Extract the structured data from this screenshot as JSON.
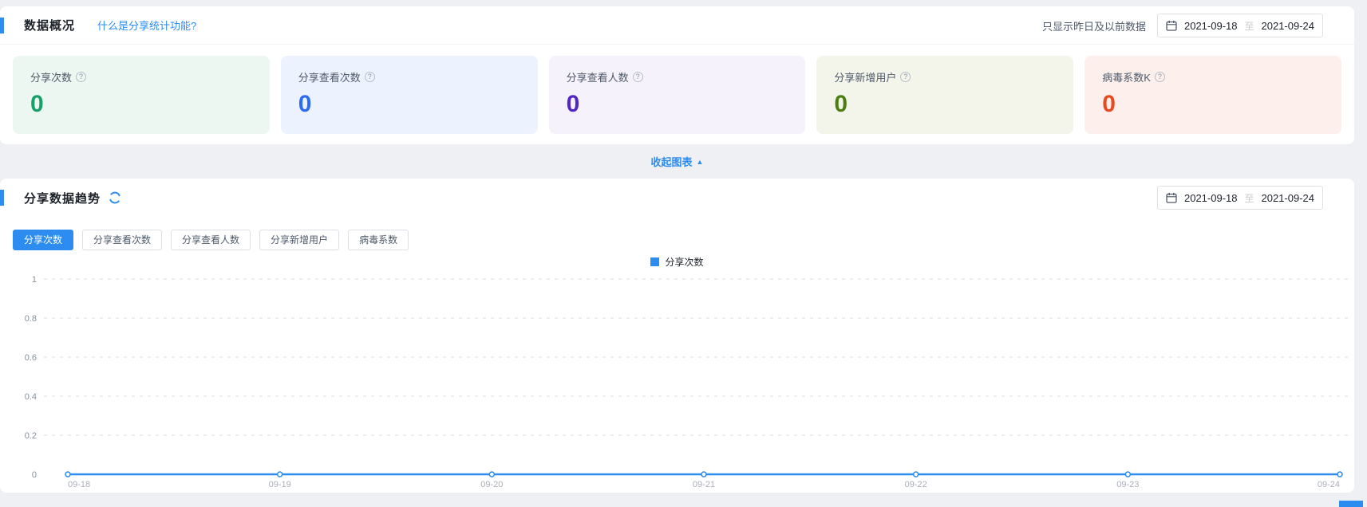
{
  "colors": {
    "accent": "#2D8CF0",
    "page_background": "#EEF0F4",
    "panel_background": "#FFFFFF",
    "border": "#DCDFE6",
    "grid_line": "#D8DCE5",
    "text_primary": "#1D2129",
    "text_secondary": "#4E5969",
    "axis_label": "#A9AEB8"
  },
  "icons": {
    "help_glyph": "?",
    "collapse_arrow": "▲"
  },
  "overview": {
    "title": "数据概况",
    "help_link": "什么是分享统计功能?",
    "date_note": "只显示昨日及以前数据",
    "date_range": {
      "start": "2021-09-18",
      "separator": "至",
      "end": "2021-09-24"
    },
    "cards": [
      {
        "label": "分享次数",
        "value": "0",
        "value_color": "#18A06B",
        "bg": "#ECF7F2"
      },
      {
        "label": "分享查看次数",
        "value": "0",
        "value_color": "#2D6BF2",
        "bg": "#EDF3FE"
      },
      {
        "label": "分享查看人数",
        "value": "0",
        "value_color": "#5226C4",
        "bg": "#F5F2FB"
      },
      {
        "label": "分享新增用户",
        "value": "0",
        "value_color": "#4A8010",
        "bg": "#F3F5EB"
      },
      {
        "label": "病毒系数K",
        "value": "0",
        "value_color": "#E8491F",
        "bg": "#FDEFEC"
      }
    ],
    "collapse_label": "收起图表"
  },
  "trend": {
    "title": "分享数据趋势",
    "date_range": {
      "start": "2021-09-18",
      "separator": "至",
      "end": "2021-09-24"
    },
    "tabs": [
      {
        "label": "分享次数",
        "active": true
      },
      {
        "label": "分享查看次数",
        "active": false
      },
      {
        "label": "分享查看人数",
        "active": false
      },
      {
        "label": "分享新增用户",
        "active": false
      },
      {
        "label": "病毒系数",
        "active": false
      }
    ],
    "legend": "分享次数"
  },
  "chart_data": {
    "type": "line",
    "title": "分享次数",
    "x": [
      "09-18",
      "09-19",
      "09-20",
      "09-21",
      "09-22",
      "09-23",
      "09-24"
    ],
    "series": [
      {
        "name": "分享次数",
        "values": [
          0,
          0,
          0,
          0,
          0,
          0,
          0
        ],
        "color": "#2D8CF0"
      }
    ],
    "ylim": [
      0,
      1
    ],
    "yticks": [
      0,
      0.2,
      0.4,
      0.6,
      0.8,
      1
    ],
    "grid": "horizontal-dashed",
    "legend_position": "top-center",
    "xlabel": "",
    "ylabel": ""
  }
}
